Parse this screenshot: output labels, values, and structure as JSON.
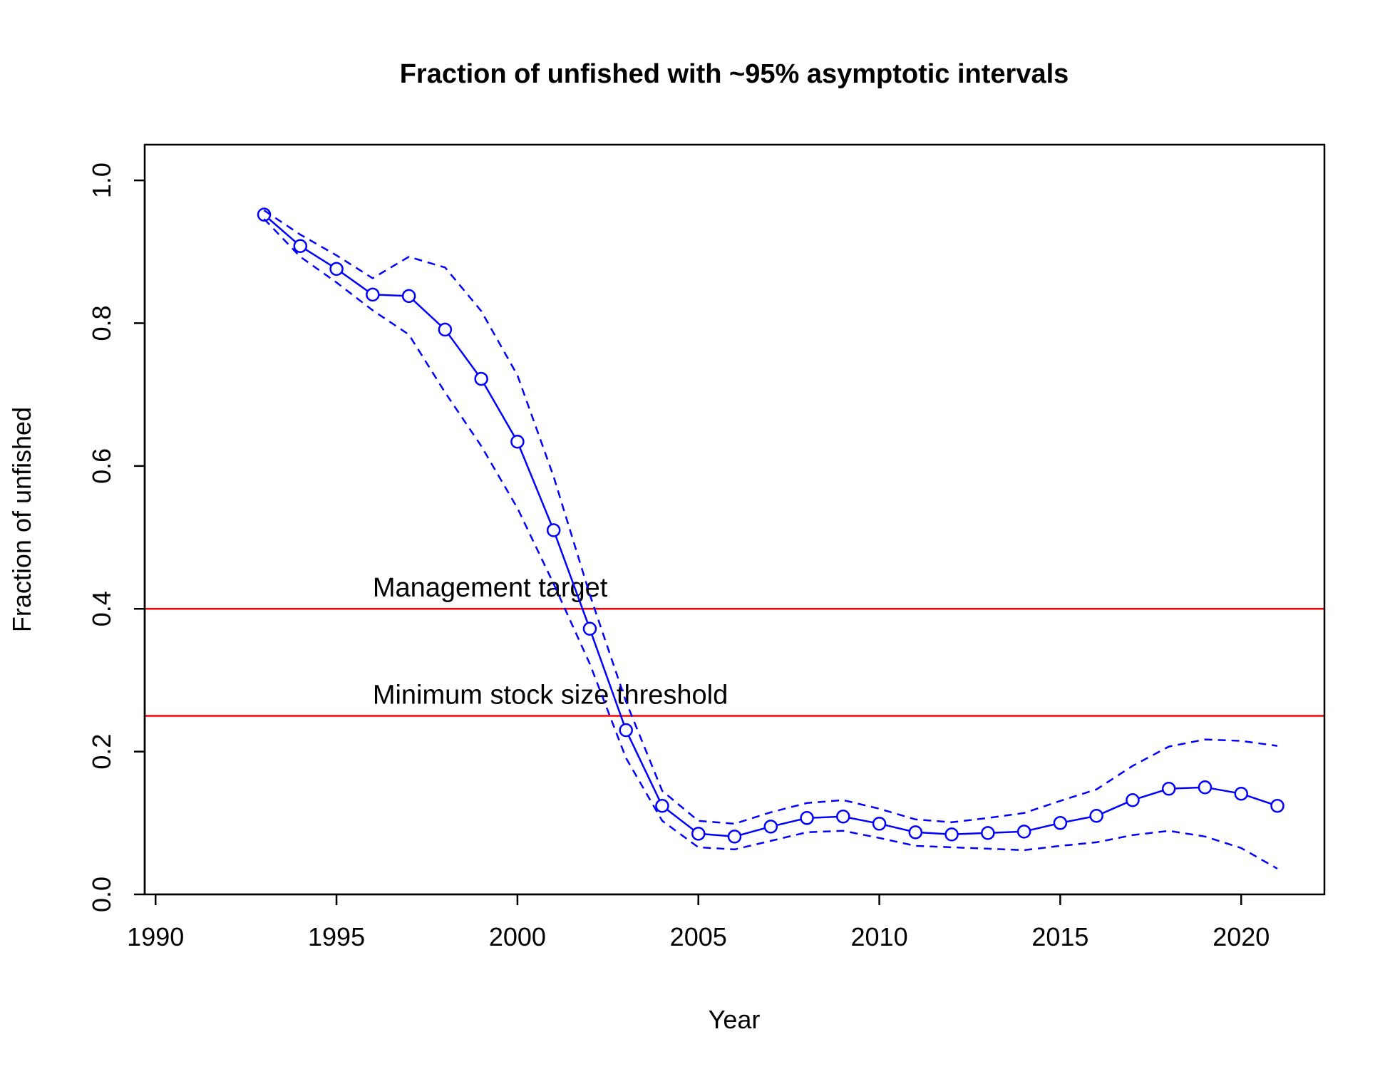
{
  "chart_data": {
    "type": "line",
    "title": "Fraction of unfished with ~95% asymptotic intervals",
    "xlabel": "Year",
    "ylabel": "Fraction of unfished",
    "xlim": [
      1989.7,
      2022.3
    ],
    "ylim": [
      0,
      1.05
    ],
    "x_ticks": [
      "1990",
      "1995",
      "2000",
      "2005",
      "2010",
      "2015",
      "2020"
    ],
    "y_ticks": [
      "0.0",
      "0.2",
      "0.4",
      "0.6",
      "0.8",
      "1.0"
    ],
    "grid": false,
    "legend": "none",
    "colors": {
      "series": "#0000ff",
      "reference": "#ff0000",
      "axes": "#000000"
    },
    "x": [
      1993,
      1994,
      1995,
      1996,
      1997,
      1998,
      1999,
      2000,
      2001,
      2002,
      2003,
      2004,
      2005,
      2006,
      2007,
      2008,
      2009,
      2010,
      2011,
      2012,
      2013,
      2014,
      2015,
      2016,
      2017,
      2018,
      2019,
      2020,
      2021
    ],
    "series": [
      {
        "role": "estimate",
        "style": "solid-with-circles",
        "values": [
          0.952,
          0.908,
          0.876,
          0.84,
          0.838,
          0.791,
          0.722,
          0.634,
          0.51,
          0.372,
          0.23,
          0.124,
          0.085,
          0.081,
          0.095,
          0.107,
          0.109,
          0.099,
          0.087,
          0.084,
          0.086,
          0.088,
          0.1,
          0.11,
          0.132,
          0.148,
          0.15,
          0.141,
          0.124
        ]
      },
      {
        "role": "upper-interval",
        "style": "dashed",
        "values": [
          0.958,
          0.924,
          0.895,
          0.863,
          0.893,
          0.878,
          0.817,
          0.727,
          0.585,
          0.42,
          0.27,
          0.145,
          0.103,
          0.099,
          0.115,
          0.128,
          0.132,
          0.12,
          0.105,
          0.101,
          0.107,
          0.114,
          0.131,
          0.147,
          0.18,
          0.207,
          0.217,
          0.215,
          0.208
        ]
      },
      {
        "role": "lower-interval",
        "style": "dashed",
        "values": [
          0.946,
          0.893,
          0.857,
          0.818,
          0.784,
          0.703,
          0.628,
          0.541,
          0.435,
          0.323,
          0.191,
          0.103,
          0.066,
          0.063,
          0.075,
          0.087,
          0.089,
          0.079,
          0.068,
          0.066,
          0.064,
          0.062,
          0.068,
          0.073,
          0.083,
          0.089,
          0.081,
          0.065,
          0.036
        ]
      }
    ],
    "reference_lines": [
      {
        "y": 0.4,
        "label": "Management target"
      },
      {
        "y": 0.25,
        "label": "Minimum stock size threshold"
      }
    ],
    "reference_label_x": 1996
  }
}
